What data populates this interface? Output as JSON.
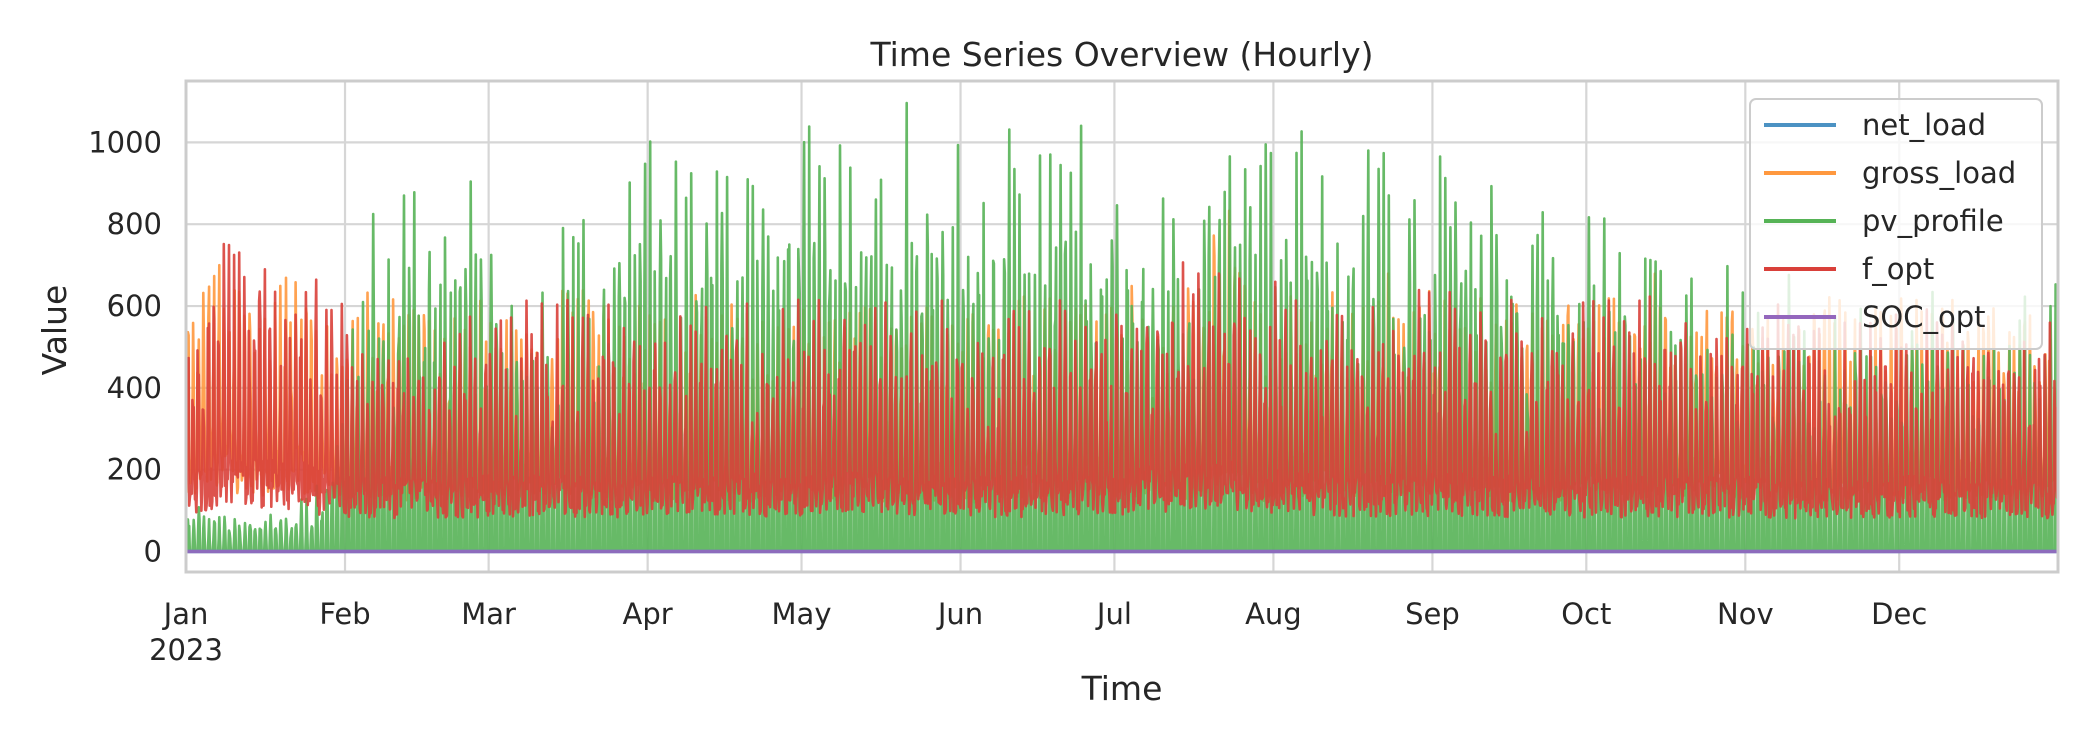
{
  "chart_data": {
    "type": "line",
    "title": "Time Series Overview (Hourly)",
    "xlabel": "Time",
    "ylabel": "Value",
    "xlim": [
      "2023-01-01",
      "2023-12-31"
    ],
    "ylim": [
      -50,
      1150
    ],
    "grid": true,
    "legend_position": "top-right",
    "x_ticks": [
      {
        "date": "2023-01-01",
        "label": "Jan",
        "sublabel": "2023"
      },
      {
        "date": "2023-02-01",
        "label": "Feb",
        "sublabel": ""
      },
      {
        "date": "2023-03-01",
        "label": "Mar",
        "sublabel": ""
      },
      {
        "date": "2023-04-01",
        "label": "Apr",
        "sublabel": ""
      },
      {
        "date": "2023-05-01",
        "label": "May",
        "sublabel": ""
      },
      {
        "date": "2023-06-01",
        "label": "Jun",
        "sublabel": ""
      },
      {
        "date": "2023-07-01",
        "label": "Jul",
        "sublabel": ""
      },
      {
        "date": "2023-08-01",
        "label": "Aug",
        "sublabel": ""
      },
      {
        "date": "2023-09-01",
        "label": "Sep",
        "sublabel": ""
      },
      {
        "date": "2023-10-01",
        "label": "Oct",
        "sublabel": ""
      },
      {
        "date": "2023-11-01",
        "label": "Nov",
        "sublabel": ""
      },
      {
        "date": "2023-12-01",
        "label": "Dec",
        "sublabel": ""
      }
    ],
    "y_ticks": [
      0,
      200,
      400,
      600,
      800,
      1000
    ],
    "x_dates": [
      "2023-01-01",
      "2023-01-08",
      "2023-01-15",
      "2023-01-22",
      "2023-01-29",
      "2023-02-05",
      "2023-02-12",
      "2023-02-19",
      "2023-02-26",
      "2023-03-05",
      "2023-03-12",
      "2023-03-19",
      "2023-03-26",
      "2023-04-02",
      "2023-04-09",
      "2023-04-16",
      "2023-04-23",
      "2023-04-30",
      "2023-05-07",
      "2023-05-14",
      "2023-05-21",
      "2023-05-28",
      "2023-06-04",
      "2023-06-11",
      "2023-06-18",
      "2023-06-25",
      "2023-07-02",
      "2023-07-09",
      "2023-07-16",
      "2023-07-23",
      "2023-07-30",
      "2023-08-06",
      "2023-08-13",
      "2023-08-20",
      "2023-08-27",
      "2023-09-03",
      "2023-09-10",
      "2023-09-17",
      "2023-09-24",
      "2023-10-01",
      "2023-10-08",
      "2023-10-15",
      "2023-10-22",
      "2023-10-29",
      "2023-11-05",
      "2023-11-12",
      "2023-11-19",
      "2023-11-26",
      "2023-12-03",
      "2023-12-10",
      "2023-12-17",
      "2023-12-24",
      "2023-12-31"
    ],
    "series": [
      {
        "name": "net_load",
        "color": "#4c92c3",
        "values": [
          0,
          0,
          0,
          0,
          0,
          0,
          0,
          0,
          0,
          0,
          0,
          0,
          0,
          0,
          0,
          0,
          0,
          0,
          0,
          0,
          0,
          0,
          0,
          0,
          0,
          0,
          0,
          0,
          0,
          0,
          0,
          0,
          0,
          0,
          0,
          0,
          0,
          0,
          0,
          0,
          0,
          0,
          0,
          0,
          0,
          0,
          0,
          0,
          0,
          0,
          0,
          0,
          0
        ]
      },
      {
        "name": "gross_load",
        "color": "#ff983e",
        "values": [
          650,
          800,
          640,
          760,
          600,
          660,
          640,
          600,
          620,
          690,
          640,
          700,
          640,
          620,
          660,
          640,
          610,
          630,
          660,
          640,
          600,
          620,
          620,
          650,
          640,
          660,
          660,
          680,
          660,
          880,
          640,
          680,
          720,
          700,
          690,
          660,
          660,
          640,
          640,
          680,
          660,
          700,
          650,
          640,
          680,
          640,
          650,
          620,
          660,
          640,
          640,
          620,
          700
        ]
      },
      {
        "name": "pv_profile",
        "color": "#56b356",
        "values": [
          120,
          100,
          80,
          110,
          200,
          850,
          900,
          930,
          960,
          700,
          720,
          890,
          880,
          1040,
          1010,
          1050,
          1070,
          1080,
          1060,
          1040,
          1100,
          1060,
          960,
          1090,
          1070,
          1040,
          1010,
          1050,
          1040,
          1030,
          1060,
          1050,
          1010,
          1020,
          1000,
          990,
          950,
          910,
          870,
          860,
          790,
          780,
          760,
          740,
          690,
          720,
          680,
          700,
          660,
          640,
          640,
          620,
          700
        ]
      },
      {
        "name": "f_opt",
        "color": "#d9403a",
        "values": [
          620,
          770,
          770,
          770,
          620,
          620,
          600,
          600,
          620,
          620,
          620,
          620,
          600,
          650,
          620,
          620,
          640,
          620,
          640,
          660,
          630,
          620,
          610,
          620,
          620,
          640,
          660,
          700,
          720,
          760,
          680,
          640,
          620,
          630,
          640,
          640,
          640,
          620,
          610,
          620,
          620,
          630,
          620,
          600,
          620,
          600,
          610,
          600,
          620,
          620,
          600,
          600,
          600
        ]
      },
      {
        "name": "SOC_opt",
        "color": "#9467bd",
        "values": [
          0,
          0,
          0,
          0,
          0,
          0,
          0,
          0,
          0,
          0,
          0,
          0,
          0,
          0,
          0,
          0,
          0,
          0,
          0,
          0,
          0,
          0,
          0,
          0,
          0,
          0,
          0,
          0,
          0,
          0,
          0,
          0,
          0,
          0,
          0,
          0,
          0,
          0,
          0,
          0,
          0,
          0,
          0,
          0,
          0,
          0,
          0,
          0,
          0,
          0,
          0,
          0,
          0
        ]
      }
    ]
  }
}
